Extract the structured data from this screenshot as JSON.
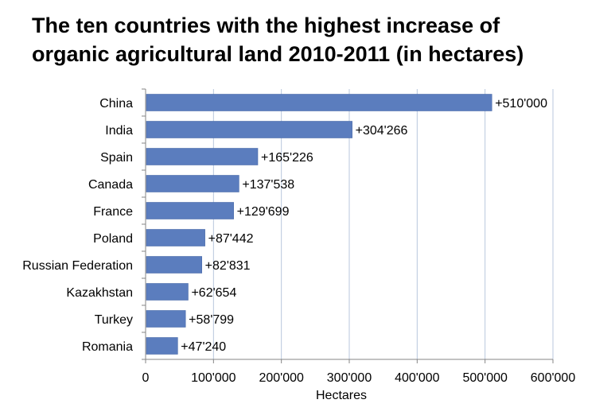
{
  "chart_data": {
    "type": "bar",
    "orientation": "horizontal",
    "title_lines": [
      "The ten countries with the highest increase of",
      "organic agricultural land 2010-2011 (in hectares)"
    ],
    "categories": [
      "China",
      "India",
      "Spain",
      "Canada",
      "France",
      "Poland",
      "Russian Federation",
      "Kazakhstan",
      "Turkey",
      "Romania"
    ],
    "values": [
      510000,
      304266,
      165226,
      137538,
      129699,
      87442,
      82831,
      62654,
      58799,
      47240
    ],
    "data_labels": [
      "+510'000",
      "+304'266",
      "+165'226",
      "+137'538",
      "+129'699",
      "+87'442",
      "+82'831",
      "+62'654",
      "+58'799",
      "+47'240"
    ],
    "xlabel": "Hectares",
    "ylabel": "",
    "xlim": [
      0,
      600000
    ],
    "xticks": [
      0,
      100000,
      200000,
      300000,
      400000,
      500000,
      600000
    ],
    "xtick_labels": [
      "0",
      "100'000",
      "200'000",
      "300'000",
      "400'000",
      "500'000",
      "600'000"
    ],
    "grid": "vertical",
    "legend": "none",
    "colors": {
      "bar": "#5B7DBE",
      "bar_edge": "#4A6AA8",
      "grid": "#B9C7DD",
      "axis": "#868686"
    }
  }
}
